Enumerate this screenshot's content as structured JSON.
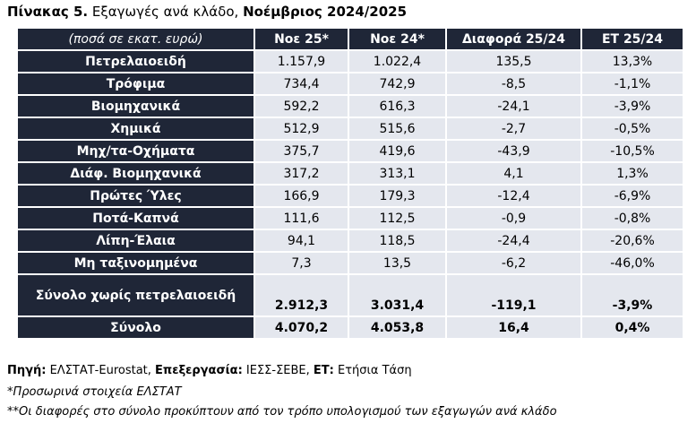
{
  "title": {
    "label": "Πίνακας 5.",
    "text": " Εξαγωγές ανά κλάδο, ",
    "period": "Νοέμβριος 2024/2025"
  },
  "table": {
    "header": [
      "(ποσά σε εκατ. ευρώ)",
      "Νοε 25*",
      "Νοε 24*",
      "Διαφορά 25/24",
      "ΕΤ 25/24"
    ],
    "rows": [
      [
        "Πετρελαιοειδή",
        "1.157,9",
        "1.022,4",
        "135,5",
        "13,3%"
      ],
      [
        "Τρόφιμα",
        "734,4",
        "742,9",
        "-8,5",
        "-1,1%"
      ],
      [
        "Βιομηχανικά",
        "592,2",
        "616,3",
        "-24,1",
        "-3,9%"
      ],
      [
        "Χημικά",
        "512,9",
        "515,6",
        "-2,7",
        "-0,5%"
      ],
      [
        "Μηχ/τα-Οχήματα",
        "375,7",
        "419,6",
        "-43,9",
        "-10,5%"
      ],
      [
        "Διάφ. Βιομηχανικά",
        "317,2",
        "313,1",
        "4,1",
        "1,3%"
      ],
      [
        "Πρώτες Ύλες",
        "166,9",
        "179,3",
        "-12,4",
        "-6,9%"
      ],
      [
        "Ποτά-Καπνά",
        "111,6",
        "112,5",
        "-0,9",
        "-0,8%"
      ],
      [
        "Λίπη-Έλαια",
        "94,1",
        "118,5",
        "-24,4",
        "-20,6%"
      ],
      [
        "Μη ταξινομημένα",
        "7,3",
        "13,5",
        "-6,2",
        "-46,0%"
      ],
      [
        "Σύνολο χωρίς πετρελαιοειδή",
        "2.912,3",
        "3.031,4",
        "-119,1",
        "-3,9%"
      ],
      [
        "Σύνολο",
        "4.070,2",
        "4.053,8",
        "16,4",
        "0,4%"
      ]
    ]
  },
  "source": [
    [
      "Πηγή:",
      " ΕΛΣΤΑΤ-Eurostat, "
    ],
    [
      "Επεξεργασία:",
      " ΙΕΣΣ-ΣΕΒΕ, "
    ],
    [
      "ΕΤ:",
      " Ετήσια Τάση"
    ]
  ],
  "notes": [
    "*Προσωρινά στοιχεία ΕΛΣΤΑΤ",
    "**Οι διαφορές στο σύνολο προκύπτουν από τον τρόπο υπολογισμού των εξαγωγών ανά κλάδο"
  ]
}
